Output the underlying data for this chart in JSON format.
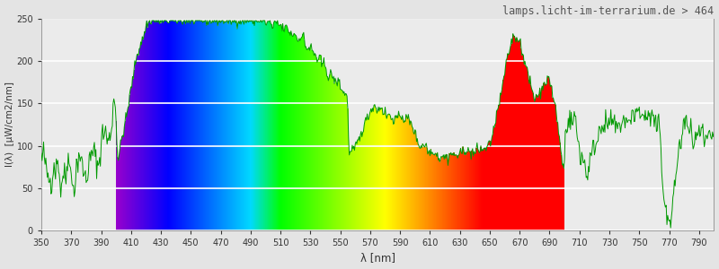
{
  "title": "lamps.licht-im-terrarium.de > 464",
  "xlabel": "λ [nm]",
  "ylabel": "I(λ)  [µW/cm2/nm]",
  "xlim": [
    350,
    800
  ],
  "ylim": [
    0,
    250
  ],
  "xticks": [
    350,
    370,
    390,
    410,
    430,
    450,
    470,
    490,
    510,
    530,
    550,
    570,
    590,
    610,
    630,
    650,
    670,
    690,
    710,
    730,
    750,
    770,
    790
  ],
  "yticks": [
    0,
    50,
    100,
    150,
    200,
    250
  ],
  "visible_start": 400,
  "visible_end": 700,
  "background_color": "#ebebeb",
  "line_color": "#00bb00",
  "title_color": "#555555",
  "grid_color": "#ffffff"
}
